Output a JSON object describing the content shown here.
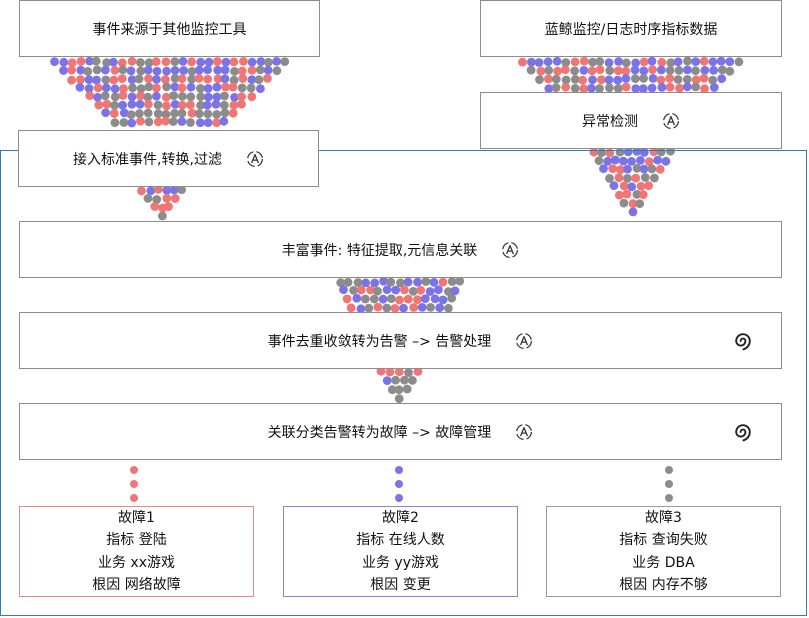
{
  "sources": {
    "external": "事件来源于其他监控工具",
    "internal": "蓝鲸监控/日志时序指标数据"
  },
  "steps": {
    "ingest": "接入标准事件,转换,过滤",
    "anomaly": "异常检测",
    "enrich": "丰富事件: 特征提取,元信息关联",
    "dedup": "事件去重收敛转为告警 –> 告警处理",
    "correlate": "关联分类告警转为故障 –> 故障管理"
  },
  "faults": [
    {
      "title": "故障1",
      "metric": "指标 登陆",
      "business": "业务 xx游戏",
      "cause": "根因 网络故障"
    },
    {
      "title": "故障2",
      "metric": "指标 在线人数",
      "business": "业务 yy游戏",
      "cause": "根因 变更"
    },
    {
      "title": "故障3",
      "metric": "指标 查询失败",
      "business": "业务 DBA",
      "cause": "根因 内存不够"
    }
  ],
  "icons": {
    "ai": "ai-assist-icon",
    "manage": "swirl-manage-icon"
  },
  "colors": {
    "red": "#f07575",
    "blue": "#7b73e8",
    "gray": "#8c8c8c",
    "frame": "#2f7fb0"
  }
}
